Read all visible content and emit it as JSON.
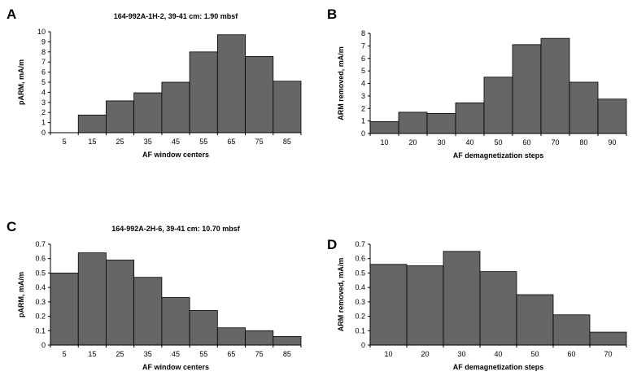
{
  "chart_data": [
    {
      "panel": "A",
      "type": "bar",
      "title": "164-992A-1H-2, 39-41 cm: 1.90 mbsf",
      "xlabel": "AF window centers",
      "ylabel": "pARM, mA/m",
      "categories": [
        "5",
        "15",
        "25",
        "35",
        "45",
        "55",
        "65",
        "75",
        "85"
      ],
      "values": [
        0,
        1.75,
        3.15,
        3.95,
        5.0,
        8.0,
        9.7,
        7.55,
        5.1
      ],
      "ylim": [
        0,
        10
      ],
      "yticks": [
        0,
        1,
        2,
        3,
        4,
        5,
        6,
        7,
        8,
        9,
        10
      ],
      "grid": false
    },
    {
      "panel": "B",
      "type": "bar",
      "title": "",
      "xlabel": "AF demagnetization steps",
      "ylabel": "ARM removed, mA/m",
      "categories": [
        "10",
        "20",
        "30",
        "40",
        "50",
        "60",
        "70",
        "80",
        "90"
      ],
      "values": [
        0.95,
        1.7,
        1.6,
        2.45,
        4.5,
        7.1,
        7.6,
        4.1,
        2.75
      ],
      "ylim": [
        0,
        8
      ],
      "yticks": [
        0,
        1,
        2,
        3,
        4,
        5,
        6,
        7,
        8
      ],
      "grid": false
    },
    {
      "panel": "C",
      "type": "bar",
      "title": "164-992A-2H-6, 39-41 cm: 10.70 mbsf",
      "xlabel": "AF window centers",
      "ylabel": "pARM, mA/m",
      "categories": [
        "5",
        "15",
        "25",
        "35",
        "45",
        "55",
        "65",
        "75",
        "85"
      ],
      "values": [
        0.5,
        0.64,
        0.59,
        0.47,
        0.33,
        0.24,
        0.12,
        0.1,
        0.06
      ],
      "ylim": [
        0,
        0.7
      ],
      "yticks": [
        "0",
        "0.1",
        "0.2",
        "0.3",
        "0.4",
        "0.5",
        "0.6",
        "0.7"
      ],
      "grid": false
    },
    {
      "panel": "D",
      "type": "bar",
      "title": "",
      "xlabel": "AF demagnetization steps",
      "ylabel": "ARM removed, mA/m",
      "categories": [
        "10",
        "20",
        "30",
        "40",
        "50",
        "60",
        "70"
      ],
      "values": [
        0.56,
        0.55,
        0.65,
        0.51,
        0.35,
        0.21,
        0.09
      ],
      "ylim": [
        0,
        0.7
      ],
      "yticks": [
        "0",
        "0.1",
        "0.2",
        "0.3",
        "0.4",
        "0.5",
        "0.6",
        "0.7"
      ],
      "grid": false
    }
  ]
}
